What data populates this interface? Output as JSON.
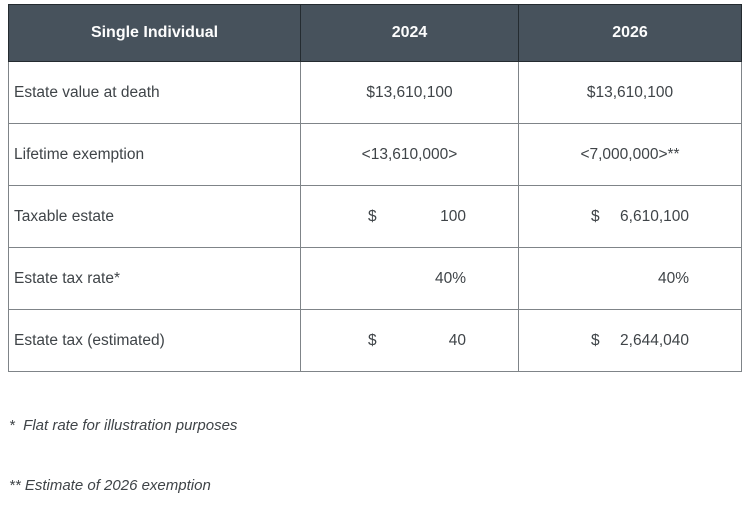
{
  "colors": {
    "header_bg": "#47525c",
    "header_text": "#fdfdfd",
    "body_text": "#3f4448",
    "body_border": "#7f8488",
    "header_border": "#242b30"
  },
  "table": {
    "columns": [
      "Single Individual",
      "2024",
      "2026"
    ],
    "rows": [
      {
        "label": "Estate value at death",
        "y2024": "$13,610,100",
        "y2026": "$13,610,100"
      },
      {
        "label": "Lifetime exemption",
        "y2024": "<13,610,000>",
        "y2026": "<7,000,000>**"
      },
      {
        "label": "Taxable estate",
        "y2024_currency": "$",
        "y2024_amount": "100",
        "y2026_currency": "$",
        "y2026_amount": "6,610,100"
      },
      {
        "label": "Estate tax rate*",
        "y2024": "40%",
        "y2026": "40%"
      },
      {
        "label": "Estate tax (estimated)",
        "y2024_currency": "$",
        "y2024_amount": "40",
        "y2026_currency": "$",
        "y2026_amount": "2,644,040"
      }
    ]
  },
  "footnotes": [
    "*  Flat rate for illustration purposes",
    "** Estimate of 2026 exemption"
  ]
}
